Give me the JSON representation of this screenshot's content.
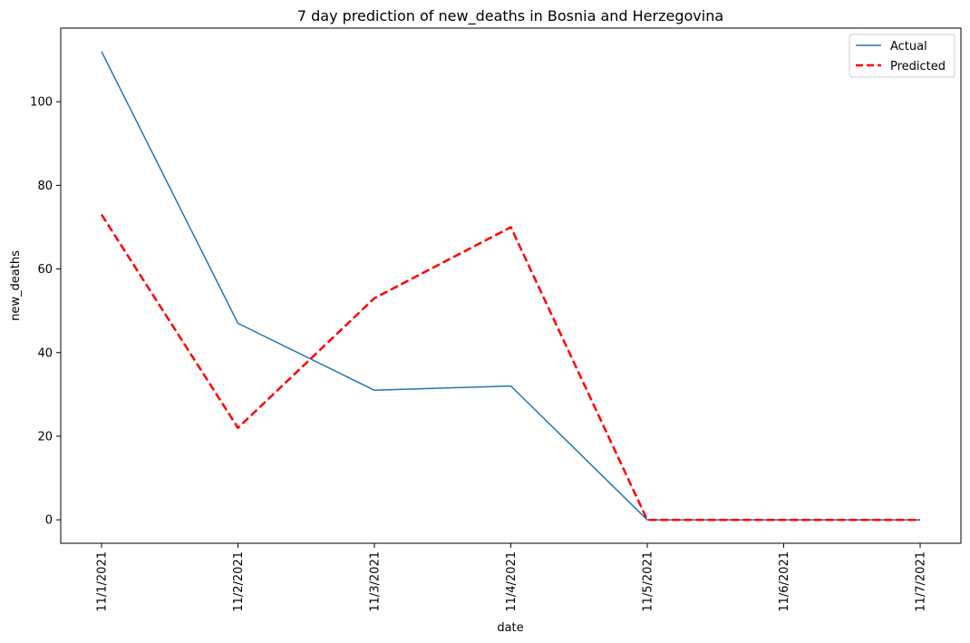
{
  "chart_data": {
    "type": "line",
    "title": "7 day prediction of new_deaths in Bosnia and Herzegovina",
    "xlabel": "date",
    "ylabel": "new_deaths",
    "categories": [
      "11/1/2021",
      "11/2/2021",
      "11/3/2021",
      "11/4/2021",
      "11/5/2021",
      "11/6/2021",
      "11/7/2021"
    ],
    "yticks": [
      0,
      20,
      40,
      60,
      80,
      100
    ],
    "ylim": [
      -5.6,
      117.6
    ],
    "grid": false,
    "legend_position": "top-right",
    "series": [
      {
        "name": "Actual",
        "values": [
          112,
          47,
          31,
          32,
          0,
          0,
          0
        ],
        "color": "#1f77b4",
        "style": "solid"
      },
      {
        "name": "Predicted",
        "values": [
          73,
          22,
          53,
          70,
          0,
          0,
          0
        ],
        "color": "#ff0000",
        "style": "dashed"
      }
    ]
  }
}
